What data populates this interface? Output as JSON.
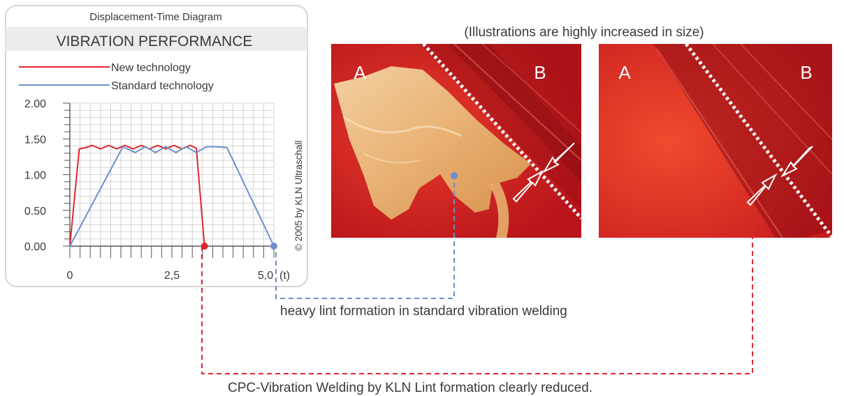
{
  "panel": {
    "subtitle": "Displacement-Time Diagram",
    "title": "VIBRATION PERFORMANCE",
    "copyright": "© 2005  by  KLN  Ultraschall"
  },
  "photos": {
    "caption": "(Illustrations are highly increased in size)",
    "left": {
      "label_a": "A",
      "label_b": "B"
    },
    "right": {
      "label_a": "A",
      "label_b": "B"
    }
  },
  "callouts": {
    "standard": "heavy lint formation in standard vibration welding",
    "new": "CPC-Vibration Welding by KLN   Lint formation clearly reduced."
  },
  "colors": {
    "new": "#e0262c",
    "standard": "#6f8fcc",
    "grid": "#c8c8c8",
    "panel_border": "#c9c9c9",
    "title_band": "#ececec"
  },
  "chart_data": {
    "type": "line",
    "title": "VIBRATION PERFORMANCE",
    "subtitle": "Displacement-Time Diagram",
    "xlabel": "(t)",
    "ylabel": "",
    "xlim": [
      0,
      5.0
    ],
    "ylim": [
      0,
      2.0
    ],
    "x_ticks": [
      0,
      2.5,
      5.0
    ],
    "x_tick_labels": [
      "0",
      "2,5",
      "5,0"
    ],
    "y_ticks": [
      0,
      0.5,
      1.0,
      1.5,
      2.0
    ],
    "y_tick_labels": [
      "0.00",
      "0.50",
      "1.00",
      "1.50",
      "2.00"
    ],
    "grid": true,
    "legend_position": "top-left",
    "series": [
      {
        "name": "New technology",
        "color": "#e0262c",
        "points": [
          [
            0,
            0
          ],
          [
            0.23,
            1.36
          ],
          [
            0.4,
            1.38
          ],
          [
            0.55,
            1.41
          ],
          [
            0.75,
            1.36
          ],
          [
            0.95,
            1.41
          ],
          [
            1.15,
            1.36
          ],
          [
            1.35,
            1.41
          ],
          [
            1.55,
            1.36
          ],
          [
            1.75,
            1.41
          ],
          [
            1.95,
            1.36
          ],
          [
            2.15,
            1.41
          ],
          [
            2.35,
            1.36
          ],
          [
            2.55,
            1.41
          ],
          [
            2.75,
            1.36
          ],
          [
            2.95,
            1.41
          ],
          [
            3.1,
            1.37
          ],
          [
            3.3,
            0
          ]
        ]
      },
      {
        "name": "Standard technology",
        "color": "#6f8fcc",
        "points": [
          [
            0,
            0
          ],
          [
            1.3,
            1.39
          ],
          [
            1.6,
            1.31
          ],
          [
            1.85,
            1.39
          ],
          [
            2.1,
            1.31
          ],
          [
            2.35,
            1.39
          ],
          [
            2.6,
            1.31
          ],
          [
            2.85,
            1.39
          ],
          [
            3.1,
            1.31
          ],
          [
            3.35,
            1.39
          ],
          [
            3.6,
            1.39
          ],
          [
            3.85,
            1.38
          ],
          [
            5.0,
            0
          ]
        ]
      }
    ]
  }
}
